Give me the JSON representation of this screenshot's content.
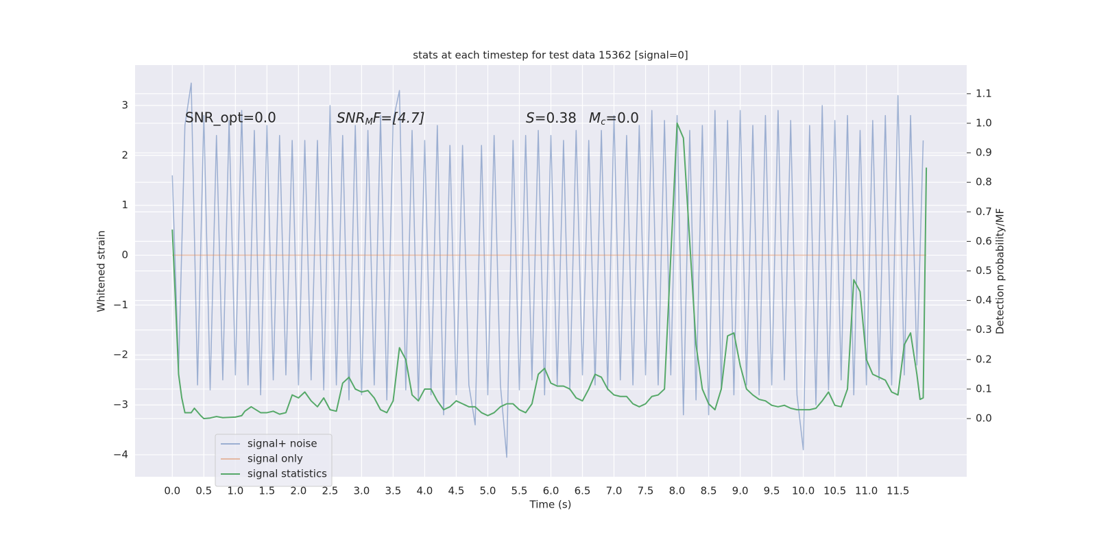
{
  "chart_data": {
    "type": "line",
    "title": "stats at each timestep for test data 15362 [signal=0]",
    "xlabel": "Time (s)",
    "ylabel": "Whitened strain",
    "y2label": "Detection probability/MF",
    "annotations": [
      [
        "SNR_opt=0.0"
      ],
      [
        "SNR",
        "M",
        "F=[4.7]"
      ],
      [
        "S",
        "=0.38"
      ],
      [
        "M",
        "c",
        "=0.0"
      ]
    ],
    "xlim": [
      -0.59,
      12.59
    ],
    "ylim": [
      -4.44,
      3.81
    ],
    "y2lim": [
      -0.197,
      1.197
    ],
    "xticks": [
      {
        "value": 0,
        "label": "0.0"
      },
      {
        "value": 0.5,
        "label": "0.5"
      },
      {
        "value": 1,
        "label": "1.0"
      },
      {
        "value": 1.5,
        "label": "1.5"
      },
      {
        "value": 2,
        "label": "2.0"
      },
      {
        "value": 2.5,
        "label": "2.5"
      },
      {
        "value": 3,
        "label": "3.0"
      },
      {
        "value": 3.5,
        "label": "3.5"
      },
      {
        "value": 4,
        "label": "4.0"
      },
      {
        "value": 4.5,
        "label": "4.5"
      },
      {
        "value": 5,
        "label": "5.0"
      },
      {
        "value": 5.5,
        "label": "5.5"
      },
      {
        "value": 6,
        "label": "6.0"
      },
      {
        "value": 6.5,
        "label": "6.5"
      },
      {
        "value": 7,
        "label": "7.0"
      },
      {
        "value": 7.5,
        "label": "7.5"
      },
      {
        "value": 8,
        "label": "8.0"
      },
      {
        "value": 8.5,
        "label": "8.5"
      },
      {
        "value": 9,
        "label": "9.0"
      },
      {
        "value": 9.5,
        "label": "9.5"
      },
      {
        "value": 10,
        "label": "10.0"
      },
      {
        "value": 10.5,
        "label": "10.5"
      },
      {
        "value": 11,
        "label": "11.0"
      },
      {
        "value": 11.5,
        "label": "11.5"
      }
    ],
    "yticks": [
      {
        "value": -4,
        "label": "−4"
      },
      {
        "value": -3,
        "label": "−3"
      },
      {
        "value": -2,
        "label": "−2"
      },
      {
        "value": -1,
        "label": "−1"
      },
      0,
      1,
      2,
      3
    ],
    "y2ticks": [
      {
        "value": 0,
        "label": "0.0"
      },
      {
        "value": 0.1,
        "label": "0.1"
      },
      {
        "value": 0.2,
        "label": "0.2"
      },
      {
        "value": 0.3,
        "label": "0.3"
      },
      {
        "value": 0.4,
        "label": "0.4"
      },
      {
        "value": 0.5,
        "label": "0.5"
      },
      {
        "value": 0.6,
        "label": "0.6"
      },
      {
        "value": 0.7,
        "label": "0.7"
      },
      {
        "value": 0.8,
        "label": "0.8"
      },
      {
        "value": 0.9,
        "label": "0.9"
      },
      {
        "value": 1,
        "label": "1.0"
      },
      {
        "value": 1.1,
        "label": "1.1"
      }
    ],
    "grid": true,
    "legend_loc": "lower left",
    "series": [
      {
        "name": "signal+ noise",
        "color": "#4c72b0",
        "opacity": 0.5,
        "x": [
          0,
          0.1,
          0.2,
          0.3,
          0.4,
          0.5,
          0.6,
          0.7,
          0.8,
          0.9,
          1,
          1.1,
          1.2,
          1.3,
          1.4,
          1.5,
          1.6,
          1.7,
          1.8,
          1.9,
          2,
          2.1,
          2.2,
          2.3,
          2.4,
          2.5,
          2.6,
          2.7,
          2.8,
          2.9,
          3,
          3.1,
          3.2,
          3.3,
          3.4,
          3.5,
          3.6,
          3.7,
          3.8,
          3.9,
          4,
          4.1,
          4.2,
          4.3,
          4.4,
          4.5,
          4.6,
          4.7,
          4.8,
          4.9,
          5,
          5.1,
          5.2,
          5.3,
          5.4,
          5.5,
          5.6,
          5.7,
          5.8,
          5.9,
          6,
          6.1,
          6.2,
          6.3,
          6.4,
          6.5,
          6.6,
          6.7,
          6.8,
          6.9,
          7,
          7.1,
          7.2,
          7.3,
          7.4,
          7.5,
          7.6,
          7.7,
          7.8,
          7.9,
          8,
          8.1,
          8.2,
          8.3,
          8.4,
          8.5,
          8.6,
          8.7,
          8.8,
          8.9,
          9,
          9.1,
          9.2,
          9.3,
          9.4,
          9.5,
          9.6,
          9.7,
          9.8,
          9.9,
          10,
          10.1,
          10.2,
          10.3,
          10.4,
          10.5,
          10.6,
          10.7,
          10.8,
          10.9,
          11,
          11.1,
          11.2,
          11.3,
          11.4,
          11.5,
          11.6,
          11.7,
          11.8,
          11.9
        ],
        "values": [
          1.6,
          -2.3,
          2.6,
          3.45,
          -2.6,
          2.8,
          -2.7,
          2.4,
          -2.5,
          2.7,
          -2.4,
          2.9,
          -2.6,
          2.5,
          -2.8,
          2.6,
          -2.5,
          2.4,
          -2.4,
          2.3,
          -2.6,
          2.3,
          -2.5,
          2.3,
          -2.7,
          3.0,
          -2.6,
          2.4,
          -2.9,
          2.6,
          -2.8,
          2.5,
          -2.6,
          2.8,
          -2.9,
          2.7,
          3.3,
          -2.7,
          2.5,
          -2.9,
          2.3,
          -2.8,
          2.6,
          -3.2,
          2.2,
          -2.8,
          2.2,
          -2.6,
          -3.4,
          2.2,
          -2.8,
          2.4,
          -2.6,
          -4.05,
          2.3,
          -2.7,
          2.4,
          -2.5,
          2.5,
          -2.8,
          2.4,
          -2.6,
          2.3,
          -2.7,
          2.5,
          -2.4,
          2.3,
          -2.6,
          2.5,
          -2.7,
          2.8,
          -2.5,
          2.4,
          -2.6,
          2.6,
          -2.4,
          2.9,
          -2.6,
          2.7,
          -2.4,
          2.8,
          -3.2,
          2.5,
          -2.9,
          2.6,
          -3.2,
          2.9,
          -2.7,
          2.7,
          -2.8,
          2.9,
          -2.6,
          2.6,
          -2.8,
          2.8,
          -2.6,
          2.9,
          -2.5,
          2.7,
          -2.8,
          -3.9,
          2.6,
          -3.0,
          3.0,
          -2.7,
          2.7,
          -2.5,
          2.8,
          -2.8,
          2.5,
          -2.6,
          2.7,
          -2.5,
          2.8,
          -2.6,
          3.2,
          -2.4,
          2.8,
          -2.2,
          2.3
        ]
      },
      {
        "name": "signal only",
        "color": "#dd8452",
        "opacity": 0.5,
        "x": [
          0,
          11.95
        ],
        "values": [
          0,
          0
        ]
      },
      {
        "name": "signal statistics",
        "color": "#55a868",
        "opacity": 1,
        "axis": "y2",
        "x": [
          0,
          0.05,
          0.1,
          0.15,
          0.2,
          0.3,
          0.35,
          0.45,
          0.5,
          0.6,
          0.7,
          0.8,
          1,
          1.1,
          1.15,
          1.25,
          1.4,
          1.5,
          1.6,
          1.7,
          1.8,
          1.9,
          2,
          2.1,
          2.2,
          2.3,
          2.4,
          2.5,
          2.6,
          2.7,
          2.8,
          2.9,
          3,
          3.1,
          3.2,
          3.3,
          3.4,
          3.5,
          3.6,
          3.7,
          3.8,
          3.9,
          4,
          4.1,
          4.2,
          4.3,
          4.4,
          4.5,
          4.6,
          4.7,
          4.8,
          4.9,
          5,
          5.1,
          5.2,
          5.3,
          5.4,
          5.5,
          5.6,
          5.7,
          5.8,
          5.9,
          6,
          6.1,
          6.2,
          6.3,
          6.4,
          6.5,
          6.6,
          6.7,
          6.8,
          6.9,
          7,
          7.1,
          7.2,
          7.3,
          7.4,
          7.5,
          7.6,
          7.7,
          7.8,
          7.9,
          8,
          8.1,
          8.2,
          8.3,
          8.4,
          8.5,
          8.6,
          8.7,
          8.8,
          8.9,
          9,
          9.1,
          9.2,
          9.3,
          9.4,
          9.5,
          9.6,
          9.7,
          9.8,
          9.9,
          10,
          10.1,
          10.2,
          10.3,
          10.4,
          10.5,
          10.6,
          10.7,
          10.8,
          10.9,
          11,
          11.1,
          11.2,
          11.3,
          11.4,
          11.5,
          11.6,
          11.7,
          11.8,
          11.85,
          11.9,
          11.95
        ],
        "values": [
          0.64,
          0.4,
          0.15,
          0.07,
          0.02,
          0.02,
          0.035,
          0.01,
          0.0,
          0.002,
          0.007,
          0.003,
          0.005,
          0.01,
          0.025,
          0.04,
          0.02,
          0.02,
          0.025,
          0.015,
          0.02,
          0.08,
          0.07,
          0.09,
          0.06,
          0.04,
          0.07,
          0.03,
          0.025,
          0.12,
          0.14,
          0.1,
          0.09,
          0.095,
          0.07,
          0.03,
          0.02,
          0.06,
          0.24,
          0.2,
          0.08,
          0.06,
          0.1,
          0.1,
          0.06,
          0.03,
          0.04,
          0.06,
          0.05,
          0.04,
          0.04,
          0.02,
          0.01,
          0.02,
          0.04,
          0.05,
          0.05,
          0.03,
          0.02,
          0.05,
          0.15,
          0.17,
          0.12,
          0.11,
          0.11,
          0.1,
          0.07,
          0.06,
          0.1,
          0.15,
          0.14,
          0.1,
          0.08,
          0.075,
          0.075,
          0.05,
          0.04,
          0.05,
          0.075,
          0.08,
          0.1,
          0.55,
          1.0,
          0.95,
          0.6,
          0.25,
          0.1,
          0.05,
          0.03,
          0.1,
          0.28,
          0.29,
          0.18,
          0.1,
          0.08,
          0.065,
          0.06,
          0.045,
          0.04,
          0.045,
          0.035,
          0.03,
          0.03,
          0.03,
          0.035,
          0.06,
          0.09,
          0.045,
          0.04,
          0.1,
          0.47,
          0.43,
          0.2,
          0.15,
          0.14,
          0.13,
          0.09,
          0.08,
          0.25,
          0.29,
          0.15,
          0.065,
          0.07,
          0.85
        ]
      }
    ]
  }
}
